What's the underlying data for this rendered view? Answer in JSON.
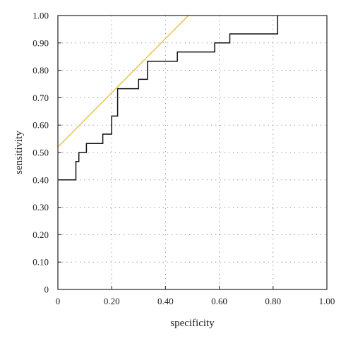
{
  "chart_data": {
    "type": "line",
    "title": "",
    "xlabel": "specificity",
    "ylabel": "sensitivity",
    "xlim": [
      0,
      1
    ],
    "ylim": [
      0,
      1
    ],
    "grid": true,
    "grid_style": "dotted",
    "x_ticks": [
      0,
      0.2,
      0.4,
      0.6,
      0.8,
      1.0
    ],
    "x_tick_labels": [
      "0",
      "0.20",
      "0.40",
      "0.60",
      "0.80",
      "1.00"
    ],
    "y_ticks": [
      0,
      0.1,
      0.2,
      0.3,
      0.4,
      0.5,
      0.6,
      0.7,
      0.8,
      0.9,
      1.0
    ],
    "y_tick_labels": [
      "0",
      "0.10",
      "0.20",
      "0.30",
      "0.40",
      "0.50",
      "0.60",
      "0.70",
      "0.80",
      "0.90",
      "1.00"
    ],
    "series": [
      {
        "color": "#111111",
        "shape": "step",
        "x": [
          0,
          0.067,
          0.067,
          0.078,
          0.078,
          0.106,
          0.106,
          0.167,
          0.167,
          0.2,
          0.2,
          0.211,
          0.211,
          0.222,
          0.222,
          0.3,
          0.3,
          0.333,
          0.333,
          0.444,
          0.444,
          0.583,
          0.583,
          0.639,
          0.639,
          0.817,
          0.817
        ],
        "y": [
          0.4,
          0.4,
          0.467,
          0.467,
          0.5,
          0.5,
          0.533,
          0.533,
          0.567,
          0.567,
          0.633,
          0.633,
          0.633,
          0.633,
          0.733,
          0.733,
          0.767,
          0.767,
          0.833,
          0.833,
          0.867,
          0.867,
          0.9,
          0.9,
          0.933,
          0.933,
          1.0
        ]
      },
      {
        "color": "#e8b93a",
        "shape": "line",
        "x": [
          0,
          0.485
        ],
        "y": [
          0.52,
          1.0
        ]
      }
    ]
  }
}
